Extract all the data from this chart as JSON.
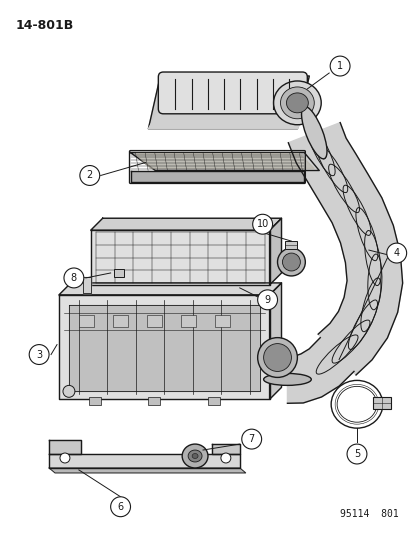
{
  "title_code": "14-801B",
  "footer_code": "95114  801",
  "bg": "#ffffff",
  "lc": "#1a1a1a",
  "gray_light": "#cccccc",
  "gray_mid": "#aaaaaa",
  "gray_dark": "#888888"
}
